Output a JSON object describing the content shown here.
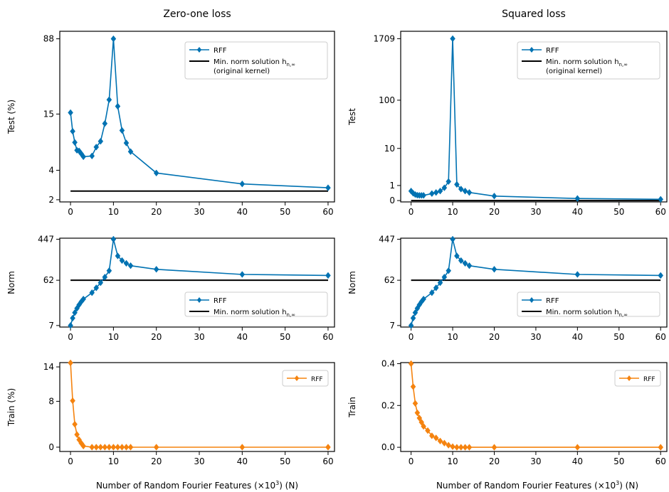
{
  "figure": {
    "xlabel": "Number of Random Fourier Features (×10",
    "xlabel_sup": "3",
    "xlabel_tail": ") (N)"
  },
  "colors": {
    "blue": "#0072b2",
    "orange": "#f5830f",
    "black": "#000000"
  },
  "chart_data": [
    {
      "id": "test-zero-one",
      "type": "line",
      "title": "Zero-one loss",
      "ylabel": "Test (%)",
      "xlim": [
        -2.5,
        61.5
      ],
      "xticks": [
        0,
        10,
        20,
        30,
        40,
        50,
        60
      ],
      "yscale": "log",
      "ylim": [
        1.9,
        105
      ],
      "yticks": [
        2,
        4,
        15,
        88
      ],
      "ytick_labels": [
        "2",
        "4",
        "15",
        "88"
      ],
      "legend": {
        "placement": "top-right",
        "entries": [
          "RFF",
          "Min. norm solution h",
          "(original kernel)"
        ],
        "sub": "n,∞"
      },
      "series": [
        {
          "name": "RFF",
          "color": "#0072b2",
          "marker": "diamond",
          "x": [
            0,
            0.5,
            1,
            1.5,
            2,
            2.5,
            3,
            5,
            6,
            7,
            8,
            9,
            10,
            11,
            12,
            13,
            14,
            20,
            40,
            60
          ],
          "y": [
            15.5,
            10,
            7.7,
            6.4,
            6.3,
            5.9,
            5.5,
            5.6,
            6.9,
            7.9,
            12,
            21,
            88,
            18,
            10.2,
            7.6,
            6.2,
            3.75,
            2.9,
            2.65
          ]
        },
        {
          "name": "Min. norm solution",
          "color": "#000000",
          "marker": "none",
          "x": [
            0,
            60
          ],
          "y": [
            2.45,
            2.45
          ]
        }
      ]
    },
    {
      "id": "test-squared",
      "type": "line",
      "title": "Squared loss",
      "ylabel": "Test",
      "xlim": [
        -2.5,
        61.5
      ],
      "xticks": [
        0,
        10,
        20,
        30,
        40,
        50,
        60
      ],
      "yscale": "log1p",
      "ylim": [
        -0.06,
        2400
      ],
      "yticks": [
        0,
        1,
        10,
        100,
        1709
      ],
      "ytick_labels": [
        "0",
        "1",
        "10",
        "100",
        "1709"
      ],
      "legend": {
        "placement": "top-right",
        "entries": [
          "RFF",
          "Min. norm solution h",
          "(original kernel)"
        ],
        "sub": "n,∞"
      },
      "series": [
        {
          "name": "RFF",
          "color": "#0072b2",
          "marker": "diamond",
          "x": [
            0,
            0.5,
            1,
            1.5,
            2,
            2.5,
            3,
            5,
            6,
            7,
            8,
            9,
            10,
            11,
            12,
            13,
            14,
            20,
            40,
            60
          ],
          "y": [
            0.55,
            0.4,
            0.32,
            0.28,
            0.27,
            0.27,
            0.27,
            0.38,
            0.45,
            0.55,
            0.8,
            1.4,
            1709,
            1.1,
            0.7,
            0.55,
            0.45,
            0.23,
            0.1,
            0.06
          ]
        },
        {
          "name": "Min. norm solution",
          "color": "#000000",
          "marker": "none",
          "x": [
            0,
            60
          ],
          "y": [
            0,
            0
          ]
        }
      ]
    },
    {
      "id": "norm-zero-one",
      "type": "line",
      "title": "",
      "ylabel": "Norm",
      "xlim": [
        -2.5,
        61.5
      ],
      "xticks": [
        0,
        10,
        20,
        30,
        40,
        50,
        60
      ],
      "yscale": "log",
      "ylim": [
        6.5,
        470
      ],
      "yticks": [
        7,
        62,
        447
      ],
      "ytick_labels": [
        "7",
        "62",
        "447"
      ],
      "legend": {
        "placement": "center-right",
        "entries": [
          "RFF",
          "Min. norm solution h"
        ],
        "sub": "n,∞"
      },
      "series": [
        {
          "name": "RFF",
          "color": "#0072b2",
          "marker": "diamond",
          "x": [
            0,
            0.5,
            1,
            1.5,
            2,
            2.5,
            3,
            5,
            6,
            7,
            8,
            9,
            10,
            11,
            12,
            13,
            14,
            20,
            40,
            60
          ],
          "y": [
            7,
            10,
            13,
            16,
            19,
            22,
            25,
            34,
            43,
            55,
            72,
            98,
            447,
            200,
            160,
            140,
            125,
            105,
            82,
            78
          ]
        },
        {
          "name": "Min. norm solution",
          "color": "#000000",
          "marker": "none",
          "x": [
            0,
            60
          ],
          "y": [
            62,
            62
          ]
        }
      ]
    },
    {
      "id": "norm-squared",
      "type": "line",
      "title": "",
      "ylabel": "Norm",
      "xlim": [
        -2.5,
        61.5
      ],
      "xticks": [
        0,
        10,
        20,
        30,
        40,
        50,
        60
      ],
      "yscale": "log",
      "ylim": [
        6.5,
        470
      ],
      "yticks": [
        7,
        62,
        447
      ],
      "ytick_labels": [
        "7",
        "62",
        "447"
      ],
      "legend": {
        "placement": "center-right",
        "entries": [
          "RFF",
          "Min. norm solution h"
        ],
        "sub": "n,∞"
      },
      "series": [
        {
          "name": "RFF",
          "color": "#0072b2",
          "marker": "diamond",
          "x": [
            0,
            0.5,
            1,
            1.5,
            2,
            2.5,
            3,
            5,
            6,
            7,
            8,
            9,
            10,
            11,
            12,
            13,
            14,
            20,
            40,
            60
          ],
          "y": [
            7,
            10,
            13,
            16,
            19,
            22,
            25,
            34,
            43,
            55,
            72,
            98,
            447,
            200,
            160,
            140,
            125,
            105,
            82,
            78
          ]
        },
        {
          "name": "Min. norm solution",
          "color": "#000000",
          "marker": "none",
          "x": [
            0,
            60
          ],
          "y": [
            62,
            62
          ]
        }
      ]
    },
    {
      "id": "train-zero-one",
      "type": "line",
      "title": "",
      "ylabel": "Train (%)",
      "xlim": [
        -2.5,
        61.5
      ],
      "xticks": [
        0,
        10,
        20,
        30,
        40,
        50,
        60
      ],
      "yscale": "linear",
      "ylim": [
        -0.75,
        14.75
      ],
      "yticks": [
        0,
        8,
        14
      ],
      "ytick_labels": [
        "0",
        "8",
        "14"
      ],
      "legend": {
        "placement": "top-right",
        "entries": [
          "RFF"
        ]
      },
      "series": [
        {
          "name": "RFF",
          "color": "#f5830f",
          "marker": "diamond",
          "x": [
            0,
            0.5,
            1,
            1.5,
            2,
            2.5,
            3,
            5,
            6,
            7,
            8,
            9,
            10,
            11,
            12,
            13,
            14,
            20,
            40,
            60
          ],
          "y": [
            14.7,
            8.1,
            4,
            2.2,
            1.3,
            0.7,
            0.2,
            0,
            0,
            0,
            0,
            0,
            0,
            0,
            0,
            0,
            0,
            0,
            0,
            0
          ]
        }
      ]
    },
    {
      "id": "train-squared",
      "type": "line",
      "title": "",
      "ylabel": "Train",
      "xlim": [
        -2.5,
        61.5
      ],
      "xticks": [
        0,
        10,
        20,
        30,
        40,
        50,
        60
      ],
      "yscale": "linear",
      "ylim": [
        -0.02,
        0.405
      ],
      "yticks": [
        0,
        0.2,
        0.4
      ],
      "ytick_labels": [
        "0.0",
        "0.2",
        "0.4"
      ],
      "legend": {
        "placement": "top-right",
        "entries": [
          "RFF"
        ]
      },
      "series": [
        {
          "name": "RFF",
          "color": "#f5830f",
          "marker": "diamond",
          "x": [
            0,
            0.5,
            1,
            1.5,
            2,
            2.5,
            3,
            4,
            5,
            6,
            7,
            8,
            9,
            10,
            11,
            12,
            13,
            14,
            20,
            40,
            60
          ],
          "y": [
            0.4,
            0.29,
            0.21,
            0.165,
            0.14,
            0.12,
            0.1,
            0.08,
            0.055,
            0.045,
            0.03,
            0.02,
            0.01,
            0.003,
            0,
            0,
            0,
            0,
            0,
            0,
            0
          ]
        }
      ]
    }
  ]
}
